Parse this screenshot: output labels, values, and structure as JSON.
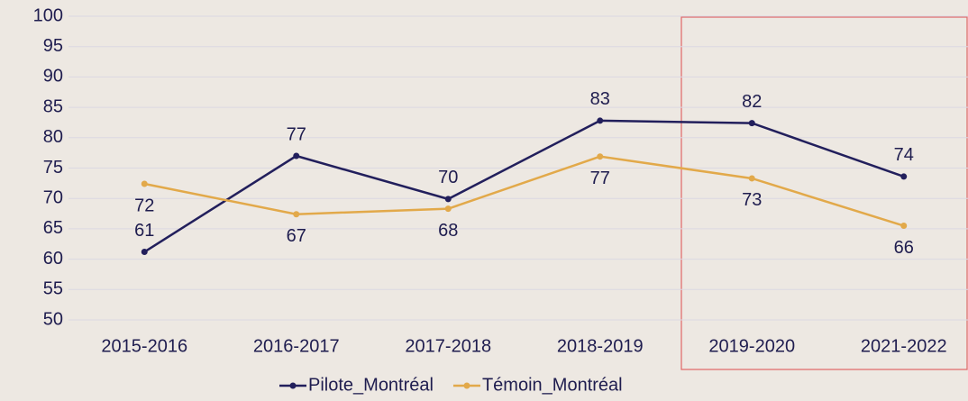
{
  "chart_data": {
    "type": "line",
    "categories": [
      "2015-2016",
      "2016-2017",
      "2017-2018",
      "2018-2019",
      "2019-2020",
      "2021-2022"
    ],
    "series": [
      {
        "name": "Pilote_Montréal",
        "color": "#221f5c",
        "values": [
          61.2,
          77,
          69.9,
          82.8,
          82.4,
          73.6
        ],
        "value_labels": [
          "61",
          "77",
          "70",
          "83",
          "82",
          "74"
        ]
      },
      {
        "name": "Témoin_Montréal",
        "color": "#e2a94a",
        "values": [
          72.4,
          67.4,
          68.3,
          76.9,
          73.3,
          65.5
        ],
        "value_labels": [
          "72",
          "67",
          "68",
          "77",
          "73",
          "66"
        ]
      }
    ],
    "ylim": [
      50,
      100
    ],
    "yticks": [
      50,
      55,
      60,
      65,
      70,
      75,
      80,
      85,
      90,
      95,
      100
    ],
    "grid": true,
    "legend": "bottom"
  }
}
